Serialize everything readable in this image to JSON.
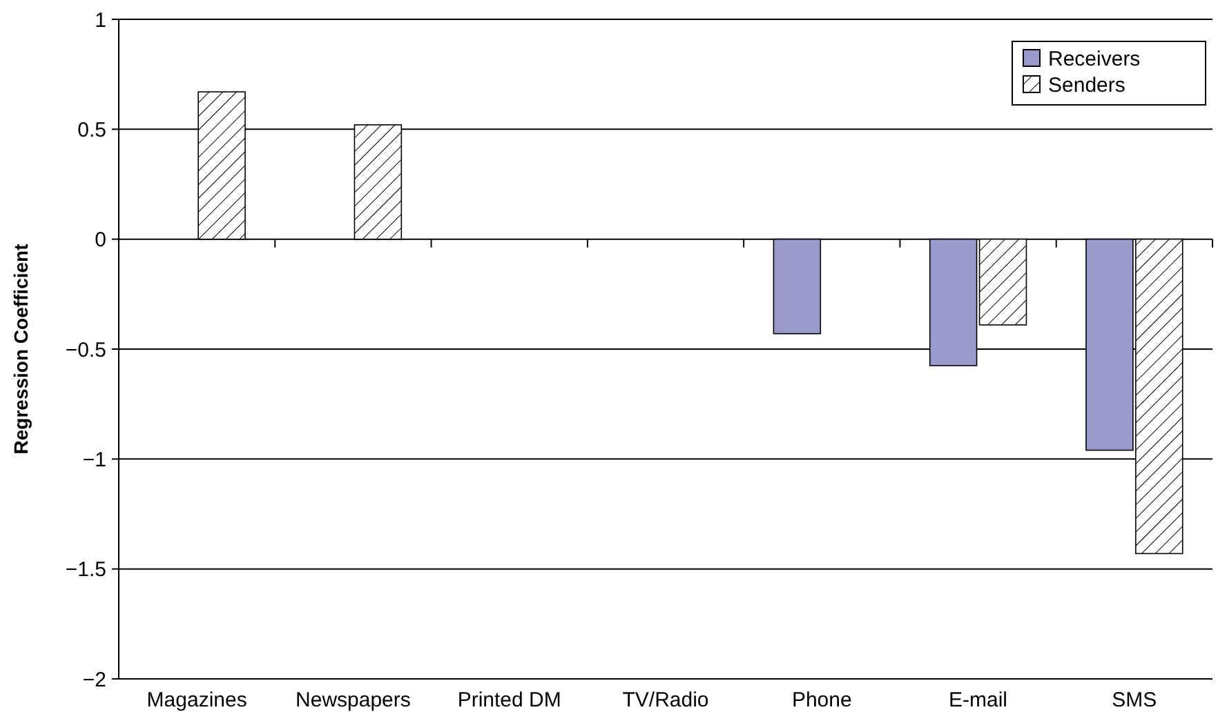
{
  "chart_data": {
    "type": "bar",
    "ylabel": "Regression Coefficient",
    "categories": [
      "Magazines",
      "Newspapers",
      "Printed DM",
      "TV/Radio",
      "Phone",
      "E-mail",
      "SMS"
    ],
    "series": [
      {
        "name": "Receivers",
        "color": "#9999cc",
        "values": [
          null,
          null,
          null,
          null,
          -0.43,
          -0.575,
          -0.96
        ]
      },
      {
        "name": "Senders",
        "color": "#000000",
        "values": [
          0.67,
          0.52,
          null,
          null,
          null,
          -0.39,
          -1.43
        ]
      }
    ],
    "ylim": [
      -2,
      1
    ],
    "yticks": [
      {
        "value": -2,
        "label": "−2"
      },
      {
        "value": -1.5,
        "label": "−1.5"
      },
      {
        "value": -1,
        "label": "−1"
      },
      {
        "value": -0.5,
        "label": "−0.5"
      },
      0,
      0.5,
      1
    ],
    "grid": "y",
    "legend": "top right"
  }
}
